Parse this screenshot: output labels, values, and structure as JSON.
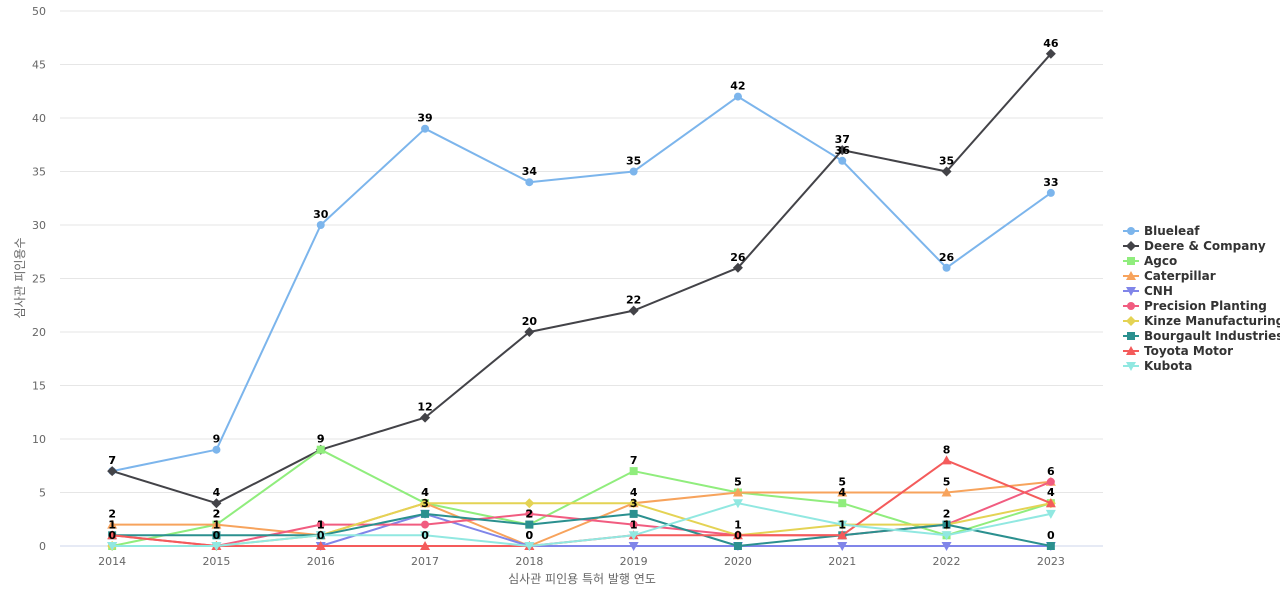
{
  "chart_data": {
    "type": "line",
    "xlabel": "심사관 피인용 특허 발행 연도",
    "ylabel": "심사관 피인용수",
    "ylim": [
      0,
      50
    ],
    "y_ticks": [
      0,
      5,
      10,
      15,
      20,
      25,
      30,
      35,
      40,
      45,
      50
    ],
    "categories": [
      "2014",
      "2015",
      "2016",
      "2017",
      "2018",
      "2019",
      "2020",
      "2021",
      "2022",
      "2023"
    ],
    "grid": true,
    "legend_position": "right",
    "series": [
      {
        "name": "Blueleaf",
        "color": "#7cb5ec",
        "marker": "circle",
        "labeled": true,
        "values": [
          7,
          9,
          30,
          39,
          34,
          35,
          42,
          36,
          26,
          33
        ]
      },
      {
        "name": "Deere & Company",
        "color": "#434348",
        "marker": "diamond",
        "labeled": true,
        "values": [
          7,
          4,
          9,
          12,
          20,
          22,
          26,
          37,
          35,
          46
        ]
      },
      {
        "name": "Agco",
        "color": "#90ed7d",
        "marker": "square",
        "labeled": true,
        "values": [
          0,
          2,
          9,
          4,
          2,
          7,
          5,
          4,
          1,
          4
        ]
      },
      {
        "name": "Caterpillar",
        "color": "#f7a35c",
        "marker": "triangle",
        "labeled": true,
        "values": [
          2,
          2,
          1,
          4,
          0,
          4,
          5,
          5,
          5,
          6
        ]
      },
      {
        "name": "CNH",
        "color": "#8085e9",
        "marker": "triangle-down",
        "labeled": false,
        "values": [
          0,
          0,
          0,
          3,
          0,
          0,
          0,
          0,
          0,
          0
        ]
      },
      {
        "name": "Precision Planting",
        "color": "#f15c80",
        "marker": "circle",
        "labeled": false,
        "values": [
          1,
          0,
          2,
          2,
          3,
          2,
          1,
          1,
          2,
          6
        ]
      },
      {
        "name": "Kinze Manufacturing",
        "color": "#e4d354",
        "marker": "diamond",
        "labeled": false,
        "values": [
          0,
          0,
          1,
          4,
          4,
          4,
          1,
          2,
          2,
          4
        ]
      },
      {
        "name": "Bourgault Industries",
        "color": "#2b908f",
        "marker": "square",
        "labeled": true,
        "values": [
          1,
          1,
          1,
          3,
          2,
          3,
          0,
          1,
          2,
          0
        ]
      },
      {
        "name": "Toyota Motor",
        "color": "#f45b5b",
        "marker": "triangle",
        "labeled": true,
        "values": [
          1,
          0,
          0,
          0,
          0,
          1,
          1,
          1,
          8,
          4
        ]
      },
      {
        "name": "Kubota",
        "color": "#91e8e1",
        "marker": "triangle-down",
        "labeled": false,
        "values": [
          0,
          0,
          1,
          1,
          0,
          1,
          4,
          2,
          1,
          3
        ]
      }
    ]
  }
}
